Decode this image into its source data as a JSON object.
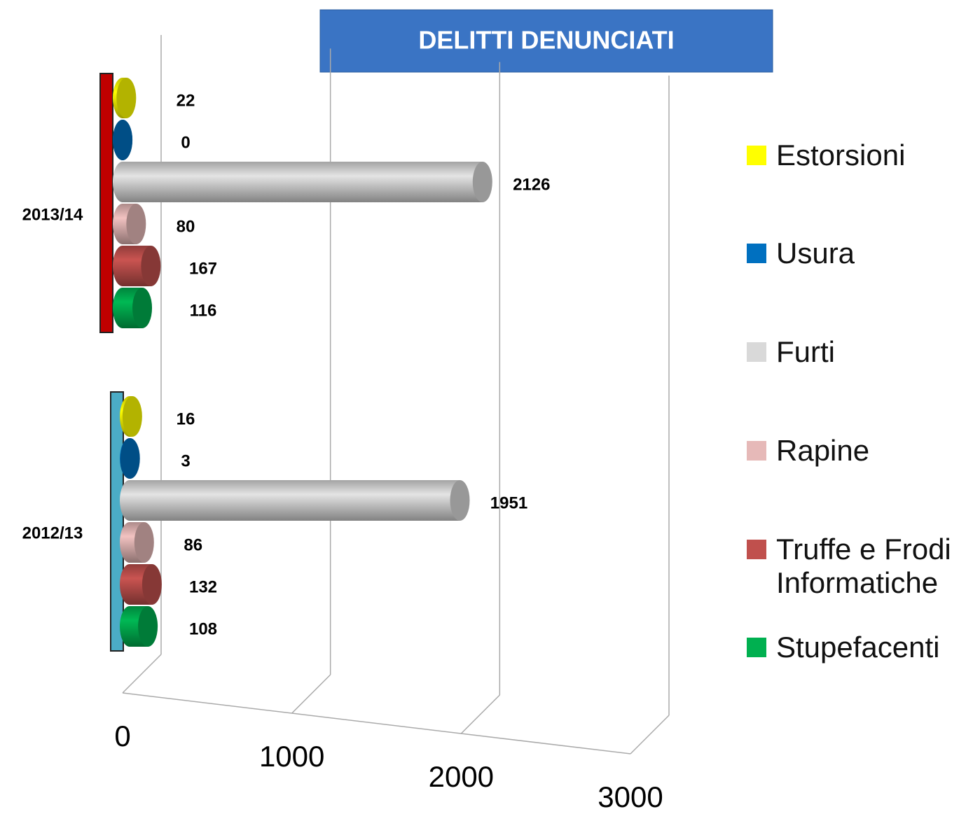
{
  "chart_data": {
    "type": "bar",
    "title": "DELITTI DENUNCIATI",
    "categories": [
      "2013/14",
      "2012/13"
    ],
    "series": [
      {
        "name": "Estorsioni",
        "color": "#ffff00",
        "values": [
          22,
          16
        ]
      },
      {
        "name": "Usura",
        "color": "#0070c0",
        "values": [
          0,
          3
        ]
      },
      {
        "name": "Furti",
        "color": "#d9d9d9",
        "values": [
          2126,
          1951
        ]
      },
      {
        "name": "Rapine",
        "color": "#e6b9b8",
        "values": [
          80,
          86
        ]
      },
      {
        "name": "Truffe e Frodi Informatiche",
        "color": "#c0504d",
        "values": [
          167,
          132
        ]
      },
      {
        "name": "Stupefacenti",
        "color": "#00b050",
        "values": [
          116,
          108
        ]
      }
    ],
    "xlim": [
      0,
      3000
    ],
    "xticks": [
      0,
      1000,
      2000,
      3000
    ],
    "grid": true
  }
}
